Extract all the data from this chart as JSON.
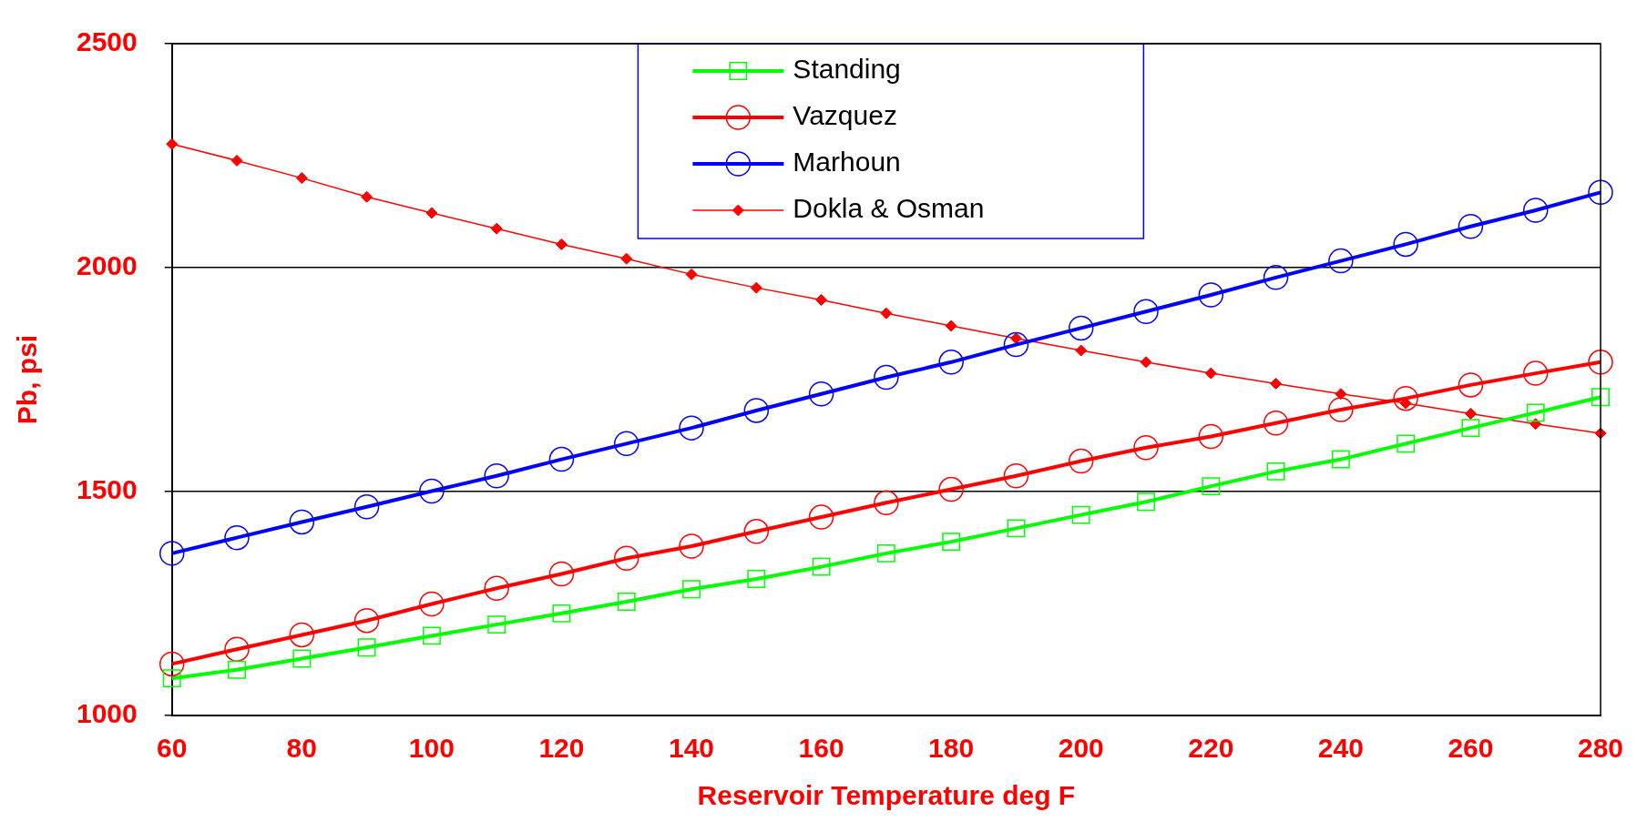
{
  "chart_data": {
    "type": "line",
    "xlabel": "Reservoir Temperature deg F",
    "ylabel": "Pb, psi",
    "x": [
      60,
      70,
      80,
      90,
      100,
      110,
      120,
      130,
      140,
      150,
      160,
      170,
      180,
      190,
      200,
      210,
      220,
      230,
      240,
      250,
      260,
      270,
      280
    ],
    "xlim": [
      60,
      280
    ],
    "xticks": [
      60,
      80,
      100,
      120,
      140,
      160,
      180,
      200,
      220,
      240,
      260,
      280
    ],
    "ylim": [
      1000,
      2500
    ],
    "yticks": [
      1000,
      1500,
      2000,
      2500
    ],
    "grid": "y",
    "legend": "top",
    "series": [
      {
        "name": "Standing",
        "color": "#00ff00",
        "marker": "square",
        "values": [
          1083,
          1102,
          1127,
          1152,
          1178,
          1203,
          1228,
          1254,
          1282,
          1305,
          1332,
          1362,
          1388,
          1418,
          1448,
          1477,
          1512,
          1545,
          1572,
          1607,
          1642,
          1676,
          1711
        ]
      },
      {
        "name": "Vazquez",
        "color": "#ff0000",
        "marker": "circle",
        "values": [
          1115,
          1148,
          1180,
          1212,
          1249,
          1284,
          1316,
          1351,
          1378,
          1411,
          1443,
          1475,
          1505,
          1535,
          1568,
          1598,
          1623,
          1653,
          1683,
          1708,
          1738,
          1764,
          1789
        ]
      },
      {
        "name": "Marhoun",
        "color": "#0000ff",
        "marker": "circle",
        "values": [
          1362,
          1397,
          1432,
          1466,
          1501,
          1535,
          1572,
          1607,
          1642,
          1681,
          1718,
          1755,
          1789,
          1828,
          1865,
          1902,
          1939,
          1978,
          2015,
          2052,
          2092,
          2128,
          2168
        ]
      },
      {
        "name": "Dokla & Osman",
        "color": "#ff0000",
        "marker": "diamond",
        "values": [
          2276,
          2239,
          2200,
          2158,
          2122,
          2087,
          2052,
          2020,
          1985,
          1955,
          1928,
          1898,
          1870,
          1842,
          1815,
          1789,
          1764,
          1741,
          1718,
          1697,
          1674,
          1651,
          1630
        ]
      }
    ]
  }
}
